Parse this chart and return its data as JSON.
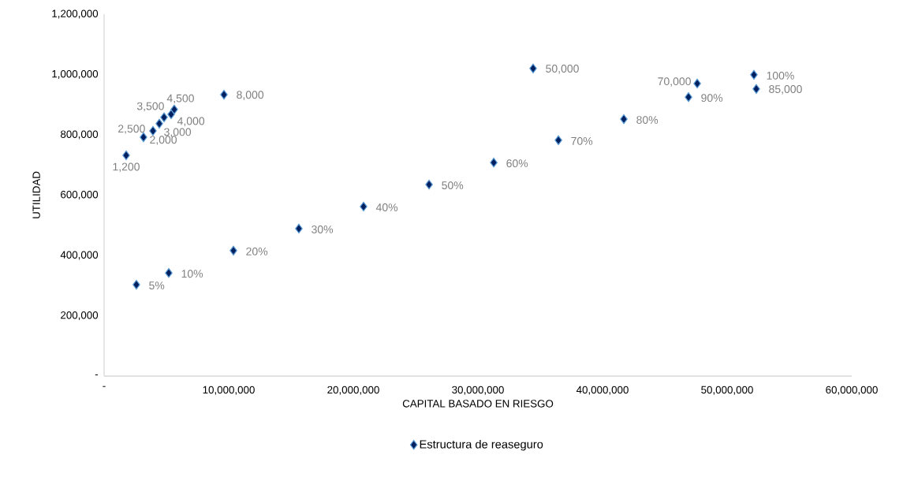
{
  "chart_data": {
    "type": "scatter",
    "xlabel": "CAPITAL BASADO EN RIESGO",
    "ylabel": "UTILIDAD",
    "x": [
      2590000,
      5190000,
      10380000,
      15630000,
      20820000,
      26080000,
      31270000,
      36460000,
      41710000,
      46900000,
      52150000,
      1770000,
      3160000,
      3920000,
      4430000,
      4810000,
      5380000,
      5630000,
      9620000,
      34430000,
      47600000,
      52340000
    ],
    "series": [
      {
        "name": "Estructura de reaseguro",
        "color": "#002060",
        "marker": "diamond",
        "values": [
          303000,
          342000,
          416000,
          489000,
          562000,
          635000,
          708000,
          782000,
          852000,
          925000,
          999000,
          732000,
          792000,
          813000,
          837000,
          858000,
          868000,
          884000,
          933000,
          1020000,
          970000,
          952000
        ]
      }
    ],
    "annotations": [
      {
        "text": "5%",
        "x": 2590000,
        "y": 303000
      },
      {
        "text": "10%",
        "x": 5190000,
        "y": 342000
      },
      {
        "text": "20%",
        "x": 10380000,
        "y": 416000
      },
      {
        "text": "30%",
        "x": 15630000,
        "y": 489000
      },
      {
        "text": "40%",
        "x": 20820000,
        "y": 562000
      },
      {
        "text": "50%",
        "x": 26080000,
        "y": 635000
      },
      {
        "text": "60%",
        "x": 31270000,
        "y": 708000
      },
      {
        "text": "70%",
        "x": 36460000,
        "y": 782000
      },
      {
        "text": "80%",
        "x": 41710000,
        "y": 852000
      },
      {
        "text": "90%",
        "x": 46900000,
        "y": 925000
      },
      {
        "text": "100%",
        "x": 52150000,
        "y": 999000
      },
      {
        "text": "1,200",
        "x": 1770000,
        "y": 732000
      },
      {
        "text": "2,000",
        "x": 3160000,
        "y": 792000
      },
      {
        "text": "2,500",
        "x": 3920000,
        "y": 813000
      },
      {
        "text": "3,000",
        "x": 4430000,
        "y": 837000
      },
      {
        "text": "3,500",
        "x": 4810000,
        "y": 858000
      },
      {
        "text": "4,000",
        "x": 5380000,
        "y": 868000
      },
      {
        "text": "4,500",
        "x": 5630000,
        "y": 884000
      },
      {
        "text": "8,000",
        "x": 9620000,
        "y": 933000
      },
      {
        "text": "50,000",
        "x": 34430000,
        "y": 1020000
      },
      {
        "text": "70,000",
        "x": 47600000,
        "y": 970000
      },
      {
        "text": "85,000",
        "x": 52340000,
        "y": 952000
      }
    ],
    "xlim": [
      0,
      60000000
    ],
    "ylim": [
      0,
      1200000
    ],
    "xticks": [
      {
        "value": 0,
        "label": "-"
      },
      {
        "value": 10000000,
        "label": "10,000,000"
      },
      {
        "value": 20000000,
        "label": "20,000,000"
      },
      {
        "value": 30000000,
        "label": "30,000,000"
      },
      {
        "value": 40000000,
        "label": "40,000,000"
      },
      {
        "value": 50000000,
        "label": "50,000,000"
      },
      {
        "value": 60000000,
        "label": "60,000,000"
      }
    ],
    "yticks": [
      {
        "value": 0,
        "label": "-"
      },
      {
        "value": 200000,
        "label": "200,000"
      },
      {
        "value": 400000,
        "label": "400,000"
      },
      {
        "value": 600000,
        "label": "600,000"
      },
      {
        "value": 800000,
        "label": "800,000"
      },
      {
        "value": 1000000,
        "label": "1,000,000"
      },
      {
        "value": 1200000,
        "label": "1,200,000"
      }
    ],
    "grid": false,
    "legend": "bottom"
  }
}
